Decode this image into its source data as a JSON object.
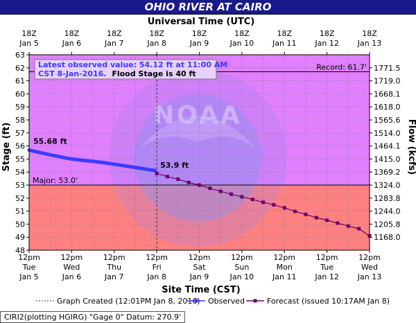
{
  "title": "OHIO RIVER AT CAIRO",
  "chart_data": {
    "type": "line",
    "top_axis_title": "Universal Time (UTC)",
    "top_ticks": [
      {
        "hour": "18Z",
        "date": "Jan 5"
      },
      {
        "hour": "18Z",
        "date": "Jan 6"
      },
      {
        "hour": "18Z",
        "date": "Jan 7"
      },
      {
        "hour": "18Z",
        "date": "Jan 8"
      },
      {
        "hour": "18Z",
        "date": "Jan 9"
      },
      {
        "hour": "18Z",
        "date": "Jan 10"
      },
      {
        "hour": "18Z",
        "date": "Jan 11"
      },
      {
        "hour": "18Z",
        "date": "Jan 12"
      },
      {
        "hour": "18Z",
        "date": "Jan 13"
      }
    ],
    "bottom_axis_title": "Site Time (CST)",
    "bottom_ticks": [
      {
        "time": "12pm",
        "day": "Tue",
        "date": "Jan 5"
      },
      {
        "time": "12pm",
        "day": "Wed",
        "date": "Jan 6"
      },
      {
        "time": "12pm",
        "day": "Thu",
        "date": "Jan 7"
      },
      {
        "time": "12pm",
        "day": "Fri",
        "date": "Jan 8"
      },
      {
        "time": "12pm",
        "day": "Sat",
        "date": "Jan 9"
      },
      {
        "time": "12pm",
        "day": "Sun",
        "date": "Jan 10"
      },
      {
        "time": "12pm",
        "day": "Mon",
        "date": "Jan 11"
      },
      {
        "time": "12pm",
        "day": "Tue",
        "date": "Jan 12"
      },
      {
        "time": "12pm",
        "day": "Wed",
        "date": "Jan 13"
      }
    ],
    "ylabel": "Stage (ft)",
    "y2label": "Flow (kcfs)",
    "ylim": [
      48,
      63
    ],
    "y_ticks": [
      48,
      49,
      50,
      51,
      52,
      53,
      54,
      55,
      56,
      57,
      58,
      59,
      60,
      61,
      62,
      63
    ],
    "flow_ticks": [
      {
        "stage": 49,
        "label": "1168.0"
      },
      {
        "stage": 50,
        "label": "1205.8"
      },
      {
        "stage": 51,
        "label": "1244.0"
      },
      {
        "stage": 52,
        "label": "1283.8"
      },
      {
        "stage": 53,
        "label": "1324.0"
      },
      {
        "stage": 54,
        "label": "1369.2"
      },
      {
        "stage": 55,
        "label": "1415.0"
      },
      {
        "stage": 56,
        "label": "1464.1"
      },
      {
        "stage": 57,
        "label": "1514.0"
      },
      {
        "stage": 58,
        "label": "1565.6"
      },
      {
        "stage": 59,
        "label": "1618.0"
      },
      {
        "stage": 60,
        "label": "1668.1"
      },
      {
        "stage": 61,
        "label": "1719.0"
      },
      {
        "stage": 62,
        "label": "1771.5"
      }
    ],
    "major_stage": 53.0,
    "major_label": "Major: 53.0'",
    "record_stage": 61.7,
    "record_label": "Record: 61.7'",
    "latest_obs_line1": "Latest observed value: 54.12 ft at 11:00 AM",
    "latest_obs_line2": "CST 8-Jan-2016.",
    "flood_stage_text": "Flood Stage is 40 ft",
    "observed_start_label": "55.68 ft",
    "forecast_start_label": "53.9 ft",
    "graph_created_day": 3.0,
    "series": [
      {
        "name": "Observed",
        "color": "#3b3bff",
        "days": [
          0.0,
          0.25,
          0.5,
          0.75,
          1.0,
          1.25,
          1.5,
          1.75,
          2.0,
          2.25,
          2.5,
          2.75,
          2.96
        ],
        "values": [
          55.68,
          55.5,
          55.32,
          55.15,
          55.0,
          54.9,
          54.82,
          54.72,
          54.6,
          54.48,
          54.35,
          54.22,
          54.12
        ]
      },
      {
        "name": "Forecast",
        "color": "#6b006b",
        "days": [
          3.0,
          3.25,
          3.5,
          3.75,
          4.0,
          4.25,
          4.5,
          4.75,
          5.0,
          5.25,
          5.5,
          5.75,
          6.0,
          6.25,
          6.5,
          6.75,
          7.0,
          7.25,
          7.5,
          7.75,
          8.0
        ],
        "values": [
          53.9,
          53.65,
          53.45,
          53.2,
          53.0,
          52.75,
          52.52,
          52.3,
          52.1,
          51.9,
          51.68,
          51.48,
          51.25,
          50.98,
          50.75,
          50.5,
          50.3,
          50.08,
          49.85,
          49.65,
          49.1
        ]
      }
    ],
    "legend": {
      "graph_created": "Graph Created (12:01PM Jan 8, 2016)",
      "observed": "Observed",
      "forecast": "Forecast (issued 10:17AM Jan 8)"
    },
    "colors": {
      "above_major": "#e080ff",
      "below_major": "#ff8080",
      "observed": "#3b3bff",
      "forecast": "#6b006b",
      "title_bar": "#1a1a8c"
    }
  },
  "footer": "CIRI2(plotting HGIRG) \"Gage 0\" Datum: 270.9'"
}
